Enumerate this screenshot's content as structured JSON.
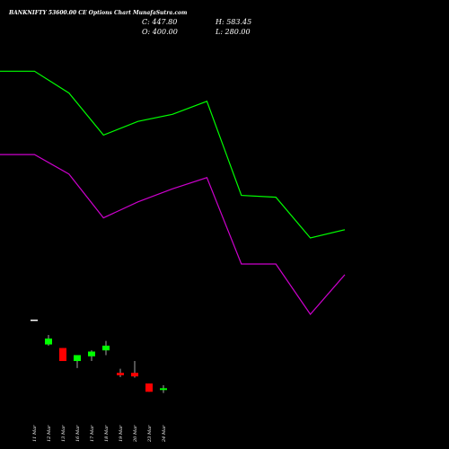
{
  "header": {
    "title": "BANKNIFTY 53600.00 CE Options Chart MunafaSutra.com",
    "open_label": "O: 400.00",
    "close_label": "C: 447.80",
    "high_label": "H: 583.45",
    "low_label": "L: 280.00"
  },
  "colors": {
    "background": "#000000",
    "up": "#00ff00",
    "down": "#ff0000",
    "line_upper": "#00ff00",
    "line_lower": "#cc00cc",
    "text": "#ffffff"
  },
  "chart_data": {
    "type": "candlestick",
    "title": "BANKNIFTY 53600.00 CE Options Chart MunafaSutra.com",
    "latest": {
      "open": 400.0,
      "close": 447.8,
      "high": 583.45,
      "low": 280.0
    },
    "candles": [
      {
        "date": "11 Mar",
        "open": 2140,
        "close": 2140,
        "high": 2140,
        "low": 2140
      },
      {
        "date": "12 Mar",
        "open": 1930,
        "close": 1980,
        "high": 2010,
        "low": 1920
      },
      {
        "date": "13 Mar",
        "open": 1900,
        "close": 1790,
        "high": 1900,
        "low": 1790
      },
      {
        "date": "16 Mar",
        "open": 1790,
        "close": 1840,
        "high": 1840,
        "low": 1730
      },
      {
        "date": "17 Mar",
        "open": 1830,
        "close": 1870,
        "high": 1880,
        "low": 1790
      },
      {
        "date": "18 Mar",
        "open": 1880,
        "close": 1920,
        "high": 1960,
        "low": 1840
      },
      {
        "date": "19 Mar",
        "open": 1690,
        "close": 1670,
        "high": 1725,
        "low": 1655
      },
      {
        "date": "20 Mar",
        "open": 1690,
        "close": 1660,
        "high": 1790,
        "low": 1650
      },
      {
        "date": "23 Mar",
        "open": 1600,
        "close": 1530,
        "high": 1600,
        "low": 1530
      },
      {
        "date": "24 Mar",
        "open": 1545,
        "close": 1560,
        "high": 1585,
        "low": 1520
      }
    ],
    "upper_line": [
      4240,
      4240,
      4055,
      3700,
      3815,
      3875,
      3985,
      3190,
      3175,
      2830,
      2900
    ],
    "lower_line": [
      3535,
      3535,
      3370,
      3000,
      3135,
      3245,
      3340,
      2610,
      2610,
      2185,
      2520
    ]
  }
}
